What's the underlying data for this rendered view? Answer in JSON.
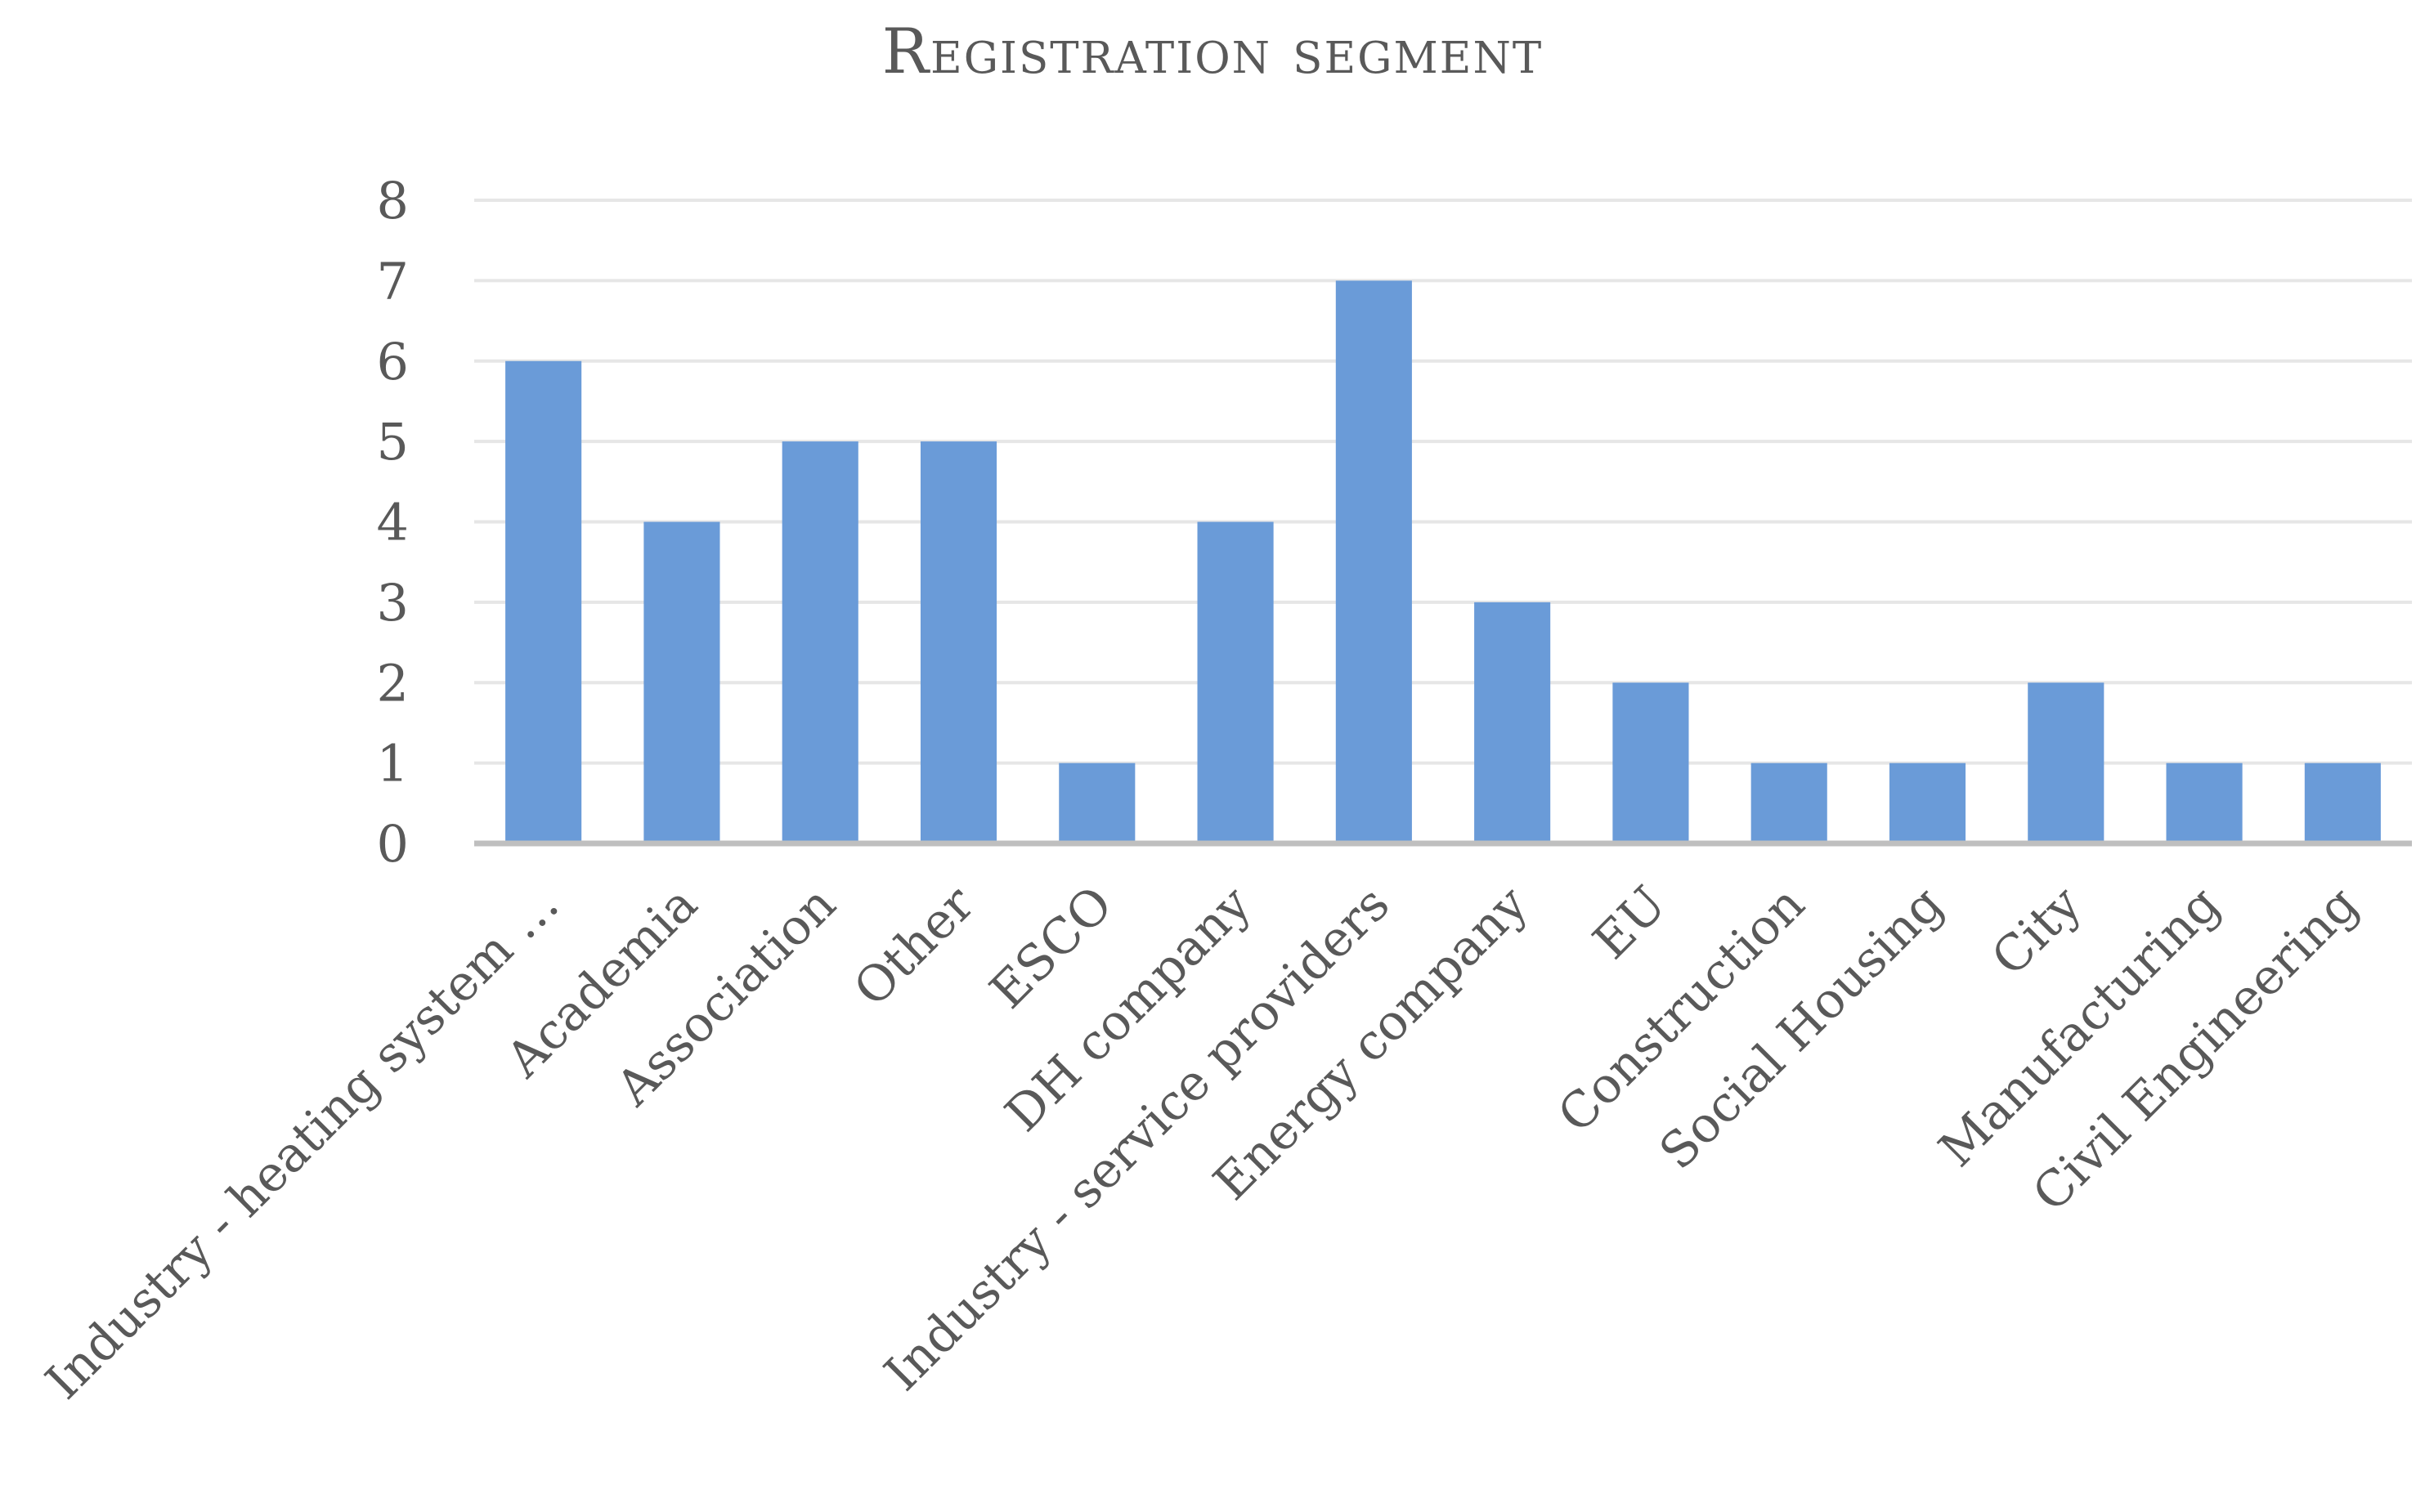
{
  "chart_data": {
    "type": "bar",
    "title": "Registration segment",
    "xlabel": "",
    "ylabel": "",
    "categories": [
      "Industry - heating system …",
      "Academia",
      "Association",
      "Other",
      "ESCO",
      "DH company",
      "Industry - service providers",
      "Energy company",
      "EU",
      "Construction",
      "Social Housing",
      "City",
      "Manufacturing",
      "Civil Engineering"
    ],
    "values": [
      6,
      4,
      5,
      5,
      1,
      4,
      7,
      3,
      2,
      1,
      1,
      2,
      1,
      1
    ],
    "ylim": [
      0,
      8
    ],
    "yticks": [
      "0",
      "1",
      "2",
      "3",
      "4",
      "5",
      "6",
      "7",
      "8"
    ],
    "grid": true,
    "legend": "none",
    "colors": {
      "bar": "#6a9bd8",
      "grid": "#e6e6e6",
      "axis": "#bfbfbf",
      "text": "#595959"
    }
  }
}
